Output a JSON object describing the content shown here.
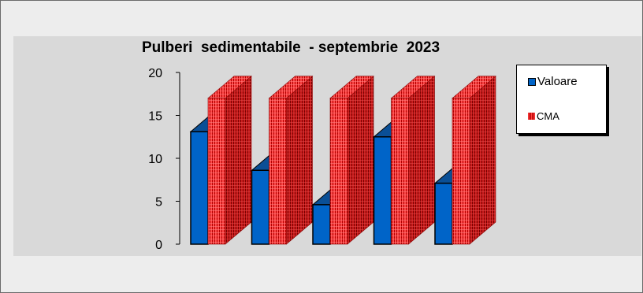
{
  "chart_data": {
    "type": "bar",
    "title": "Pulberi  sedimentabile  - septembrie  2023",
    "xlabel": "",
    "ylabel": "",
    "ylim": [
      0,
      20
    ],
    "yticks": [
      "0",
      "5",
      "10",
      "15",
      "20"
    ],
    "categories": [
      "",
      "",
      "",
      "",
      ""
    ],
    "series": [
      {
        "name": "Valoare",
        "values": [
          13.1,
          8.6,
          4.6,
          12.5,
          7.1
        ],
        "color": "#0064c8"
      },
      {
        "name": "CMA",
        "values": [
          17,
          17,
          17,
          17,
          17
        ],
        "color": "#ff3333"
      }
    ],
    "legend_position": "top-right",
    "grid": false,
    "three_d": true
  },
  "legend": {
    "items": [
      {
        "label": "Valoare",
        "color": "#0064c8"
      },
      {
        "label": "CMA",
        "color": "#ff3333"
      }
    ]
  },
  "colors": {
    "background": "#ededed",
    "plot_area": "#d9d9d9",
    "blue_bar": "#0064c8",
    "red_bar": "#ff3333"
  }
}
